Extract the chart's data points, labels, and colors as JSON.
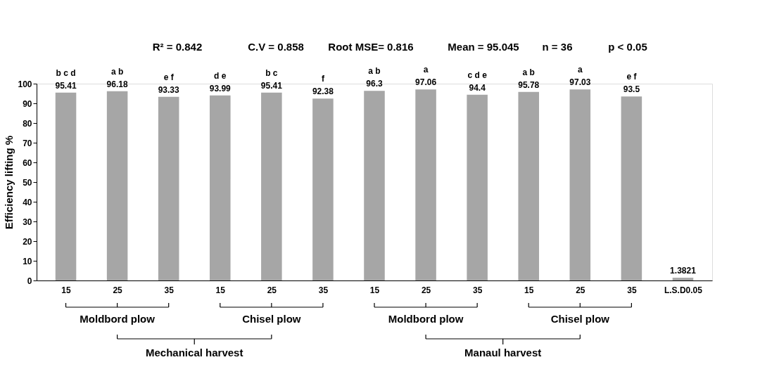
{
  "chart_data": {
    "type": "bar",
    "ylabel": "Efficiency lifting  %",
    "categories": [
      "15",
      "25",
      "35",
      "15",
      "25",
      "35",
      "15",
      "25",
      "35",
      "15",
      "25",
      "35",
      "L.S.D0.05"
    ],
    "values": [
      95.41,
      96.18,
      93.33,
      93.99,
      95.41,
      92.38,
      96.3,
      97.06,
      94.4,
      95.78,
      97.03,
      93.5,
      1.3821
    ],
    "color": "#a6a6a6",
    "ylim": [
      0,
      100
    ],
    "yticks": [
      0,
      10,
      20,
      30,
      40,
      50,
      60,
      70,
      80,
      90,
      100
    ],
    "grid": false,
    "data_labels": true,
    "annotations": [
      "R² = 0.842",
      "C.V = 0.858",
      "Root MSE= 0.816",
      "Mean = 95.045",
      "n = 36",
      "p < 0.05",
      "Moldbord plow",
      "Chisel plow",
      "Moldbord plow",
      "Chisel plow",
      "Mechanical harvest",
      "Manaul harvest",
      "b c d",
      "a  b",
      "e  f",
      "d  e",
      "b  c",
      "f",
      "a  b",
      "a",
      "c d e",
      "a  b",
      "a",
      "e  f"
    ]
  }
}
